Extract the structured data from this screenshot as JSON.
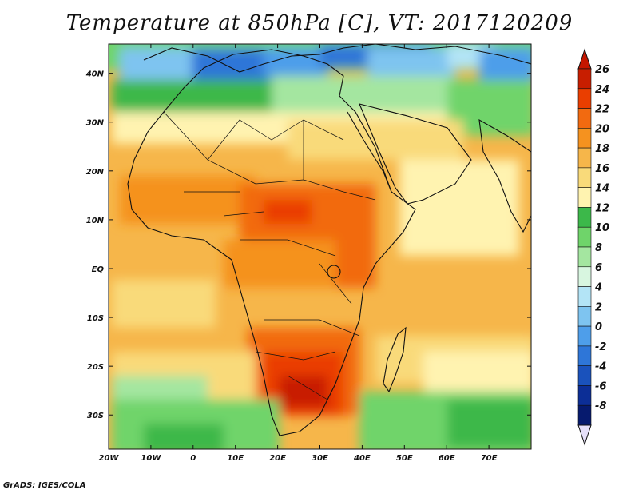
{
  "title": "Temperature at 850hPa [C], VT: 2017120209",
  "footer": "GrADS: IGES/COLA",
  "map": {
    "lon_labels": [
      "20W",
      "10W",
      "0",
      "10E",
      "20E",
      "30E",
      "40E",
      "50E",
      "60E",
      "70E"
    ],
    "lat_labels": [
      "40N",
      "30N",
      "20N",
      "10N",
      "EQ",
      "10S",
      "20S",
      "30S"
    ]
  },
  "colorbar": {
    "levels": [
      "26",
      "24",
      "22",
      "20",
      "18",
      "16",
      "14",
      "12",
      "10",
      "8",
      "6",
      "4",
      "2",
      "0",
      "-2",
      "-4",
      "-6",
      "-8"
    ],
    "colors": [
      "#c81e00",
      "#ea3e00",
      "#f26a10",
      "#f5921f",
      "#f6b64a",
      "#f9da7a",
      "#fff3b0",
      "#3cb84a",
      "#6fd46a",
      "#a4e6a0",
      "#d8f6e0",
      "#b3e4f6",
      "#7ec4f0",
      "#4e9eea",
      "#2e76d8",
      "#1a52bc",
      "#0c2e96",
      "#061a6e"
    ],
    "over_color": "#c41600",
    "under_color": "#e6e0fa"
  }
}
